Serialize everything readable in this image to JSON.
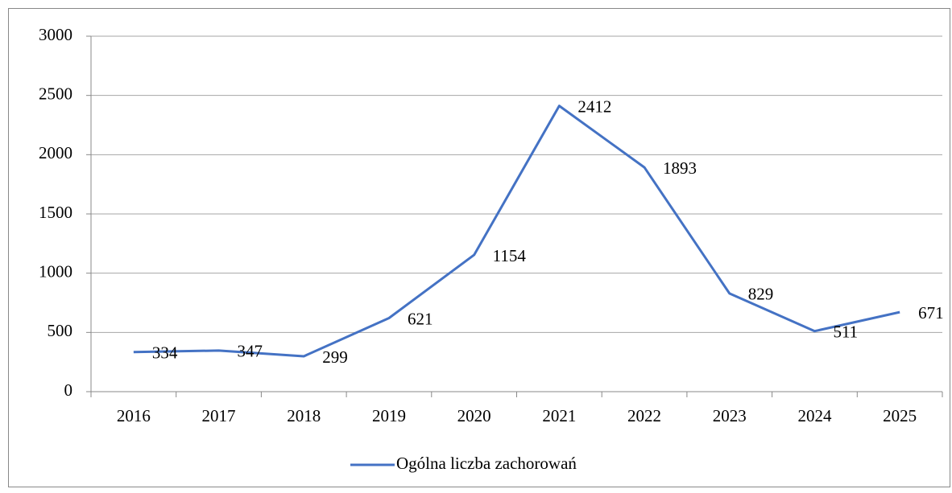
{
  "chart_data": {
    "type": "line",
    "categories": [
      "2016",
      "2017",
      "2018",
      "2019",
      "2020",
      "2021",
      "2022",
      "2023",
      "2024",
      "2025"
    ],
    "series": [
      {
        "name": "Ogólna liczba zachorowań",
        "color": "#4472c4",
        "values": [
          334,
          347,
          299,
          621,
          1154,
          2412,
          1893,
          829,
          511,
          671
        ]
      }
    ],
    "ylim": [
      0,
      3000
    ],
    "yticks": [
      0,
      500,
      1000,
      1500,
      2000,
      2500,
      3000
    ],
    "grid": true,
    "legend": "bottom"
  }
}
